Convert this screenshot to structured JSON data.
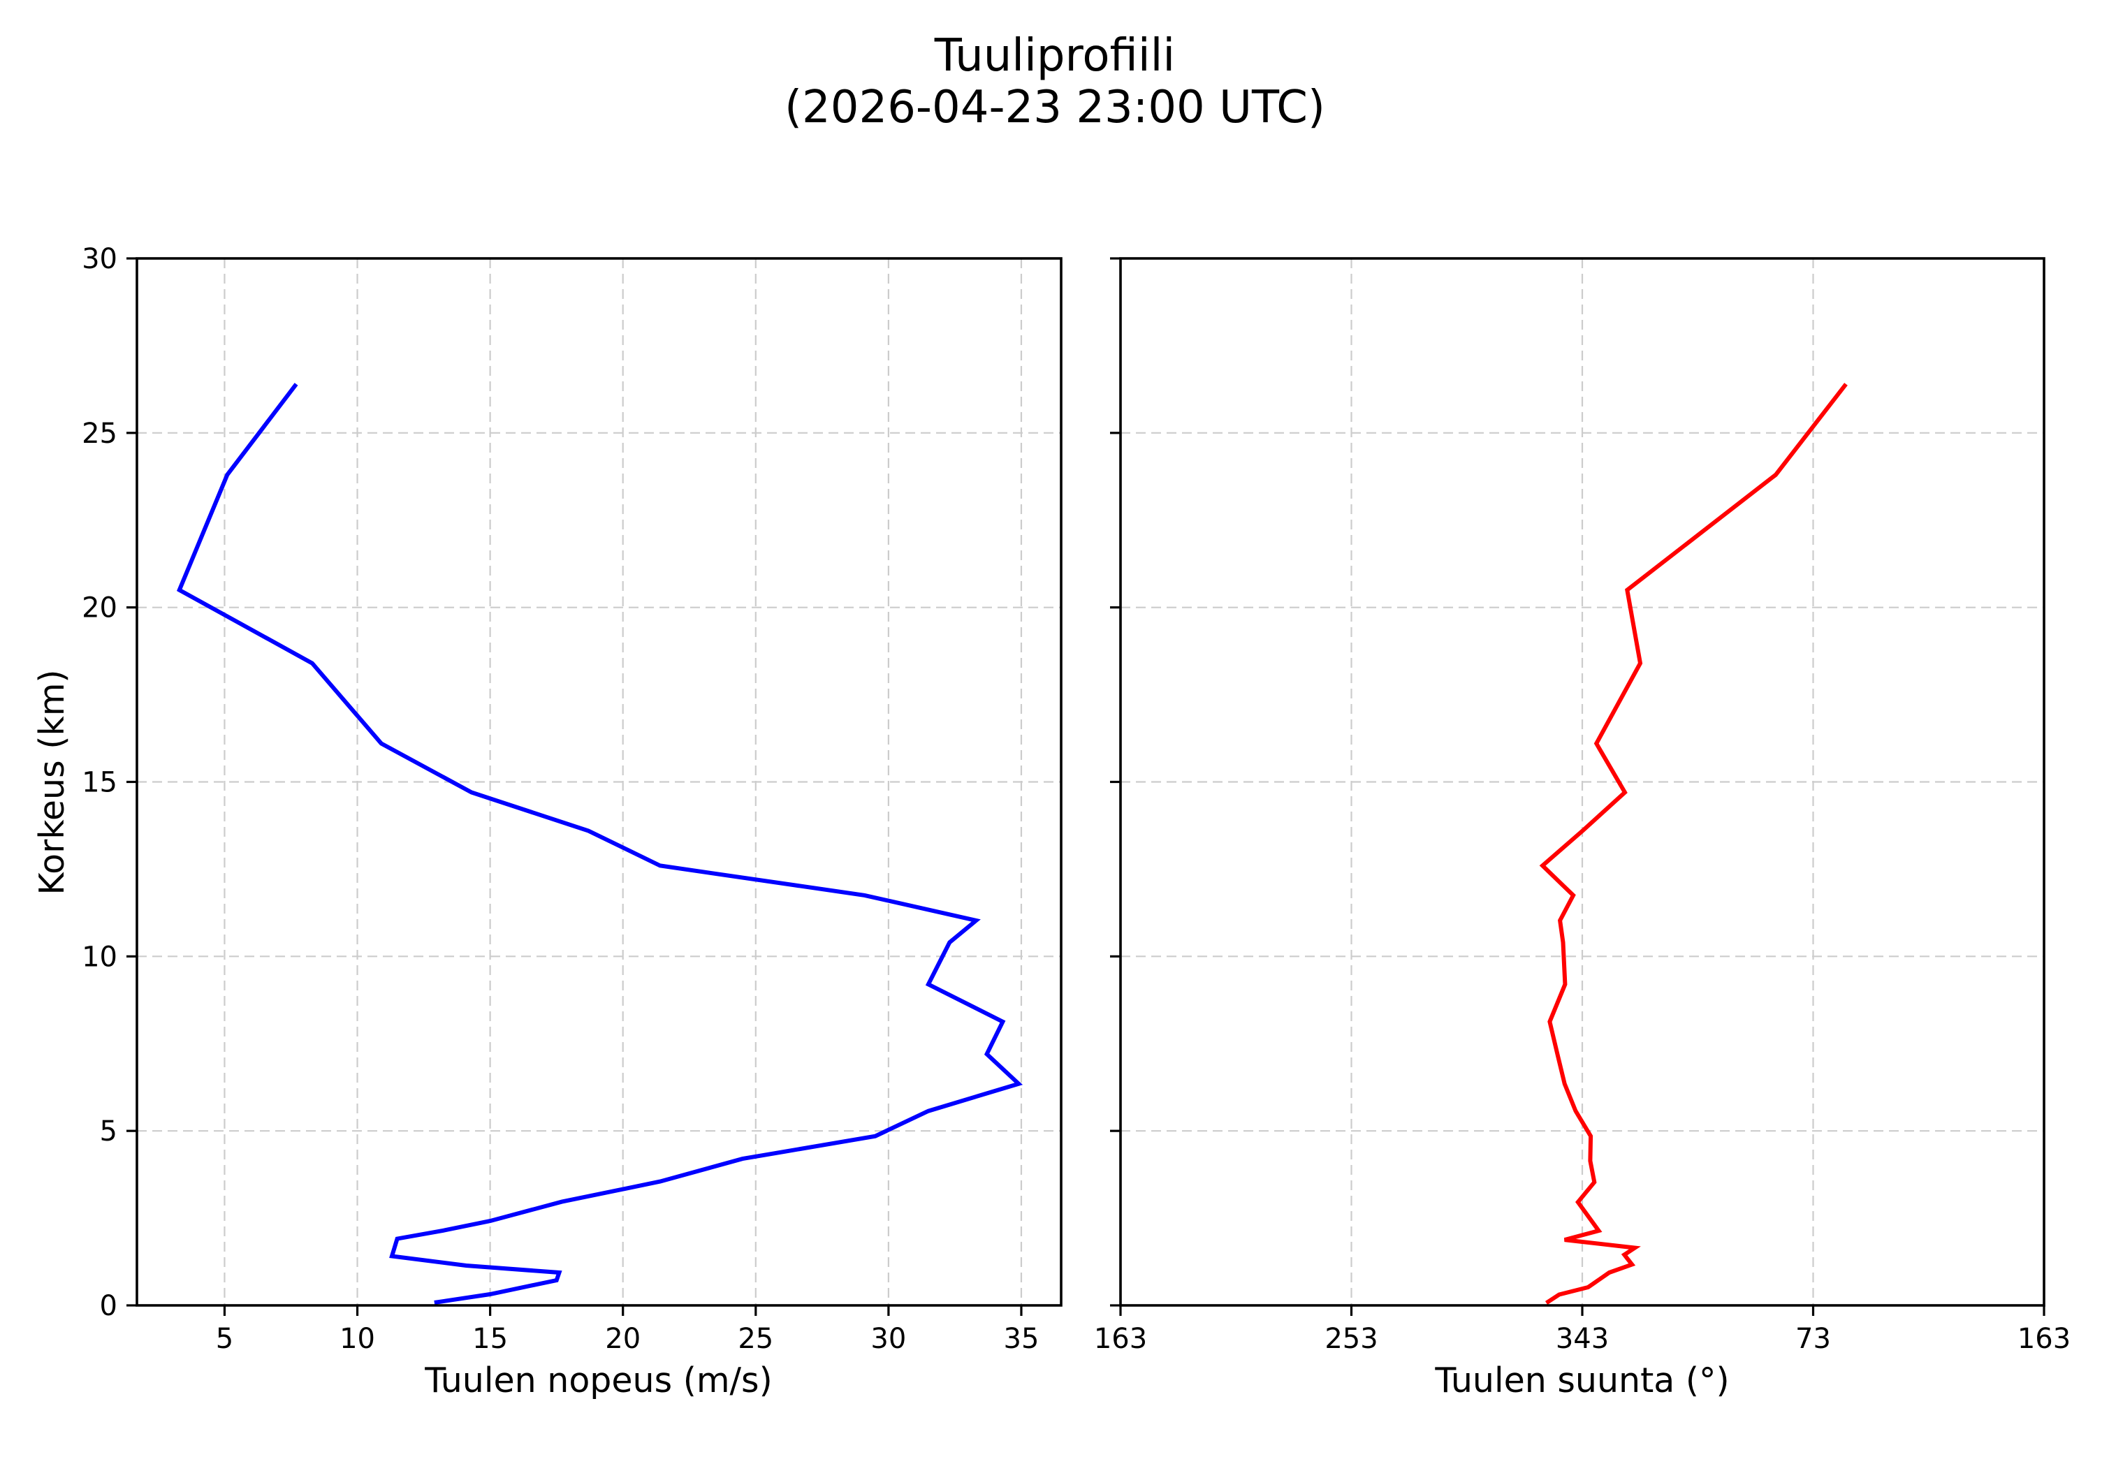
{
  "figure": {
    "title_line1": "Tuuliprofiili",
    "title_line2": "(2026-04-23 23:00 UTC)",
    "background": "#ffffff"
  },
  "panels": {
    "speed": {
      "xlabel": "Tuulen nopeus (m/s)",
      "ylabel": "Korkeus (km)",
      "xticks": [
        5,
        10,
        15,
        20,
        25,
        30,
        35
      ],
      "xtick_labels": [
        "5",
        "10",
        "15",
        "20",
        "25",
        "30",
        "35"
      ],
      "yticks": [
        0,
        5,
        10,
        15,
        20,
        25,
        30
      ],
      "ytick_labels": [
        "0",
        "5",
        "10",
        "15",
        "20",
        "25",
        "30"
      ],
      "line_color": "#0000ff"
    },
    "direction": {
      "xlabel": "Tuulen suunta (°)",
      "xticks_unwrapped": [
        163,
        253,
        343,
        433,
        523
      ],
      "xtick_labels": [
        "163",
        "253",
        "343",
        "73",
        "163"
      ],
      "line_color": "#ff0000"
    }
  },
  "chart_data": [
    {
      "type": "line",
      "title": "Tuuliprofiili (2026-04-23 23:00 UTC)",
      "xlabel": "Tuulen nopeus (m/s)",
      "ylabel": "Korkeus (km)",
      "xlim": [
        1.7,
        36.5
      ],
      "ylim": [
        0,
        30
      ],
      "grid": true,
      "series": [
        {
          "name": "Tuulen nopeus",
          "color": "#0000ff",
          "x": [
            12.9,
            15.0,
            17.5,
            17.6,
            14.1,
            11.3,
            11.4,
            11.5,
            13.2,
            15.0,
            17.7,
            21.4,
            24.5,
            29.5,
            31.5,
            34.9,
            33.7,
            34.3,
            31.5,
            32.3,
            33.3,
            29.1,
            21.4,
            18.7,
            14.3,
            10.9,
            8.3,
            3.3,
            5.1,
            7.7
          ],
          "y": [
            0.08,
            0.32,
            0.72,
            0.94,
            1.14,
            1.41,
            1.66,
            1.91,
            2.14,
            2.42,
            2.97,
            3.55,
            4.2,
            4.85,
            5.57,
            6.35,
            7.2,
            8.13,
            9.2,
            10.4,
            11.03,
            11.75,
            12.6,
            13.6,
            14.7,
            16.1,
            18.4,
            20.5,
            23.8,
            26.4
          ]
        }
      ]
    },
    {
      "type": "line",
      "xlabel": "Tuulen suunta (°)",
      "ylabel": "Korkeus (km)",
      "xlim": [
        163,
        523
      ],
      "xtick_labels": [
        "163",
        "253",
        "343",
        "73",
        "163"
      ],
      "ylim": [
        0,
        30
      ],
      "grid": true,
      "series": [
        {
          "name": "Tuulen suunta",
          "color": "#ff0000",
          "x_unwrapped": [
            329.0,
            334.0,
            345.3,
            353.5,
            362.4,
            359.4,
            363.5,
            336.1,
            349.4,
            341.3,
            347.7,
            346.1,
            346.3,
            340.4,
            336.1,
            333.3,
            330.3,
            336.3,
            335.5,
            334.3,
            339.5,
            327.5,
            343.1,
            359.6,
            348.5,
            365.6,
            360.5,
            418.4,
            445.8
          ],
          "x_degrees": [
            329,
            334,
            345,
            354,
            2,
            359,
            4,
            336,
            349,
            341,
            348,
            346,
            346,
            340,
            336,
            333,
            330,
            336,
            336,
            334,
            340,
            328,
            343,
            360,
            349,
            6,
            1,
            58,
            86
          ],
          "y": [
            0.07,
            0.31,
            0.52,
            0.94,
            1.17,
            1.45,
            1.65,
            1.88,
            2.14,
            2.96,
            3.53,
            4.14,
            4.85,
            5.57,
            6.35,
            7.2,
            8.13,
            9.2,
            10.4,
            11.03,
            11.75,
            12.6,
            13.6,
            14.7,
            16.1,
            18.4,
            20.5,
            23.8,
            26.4
          ]
        }
      ]
    }
  ]
}
